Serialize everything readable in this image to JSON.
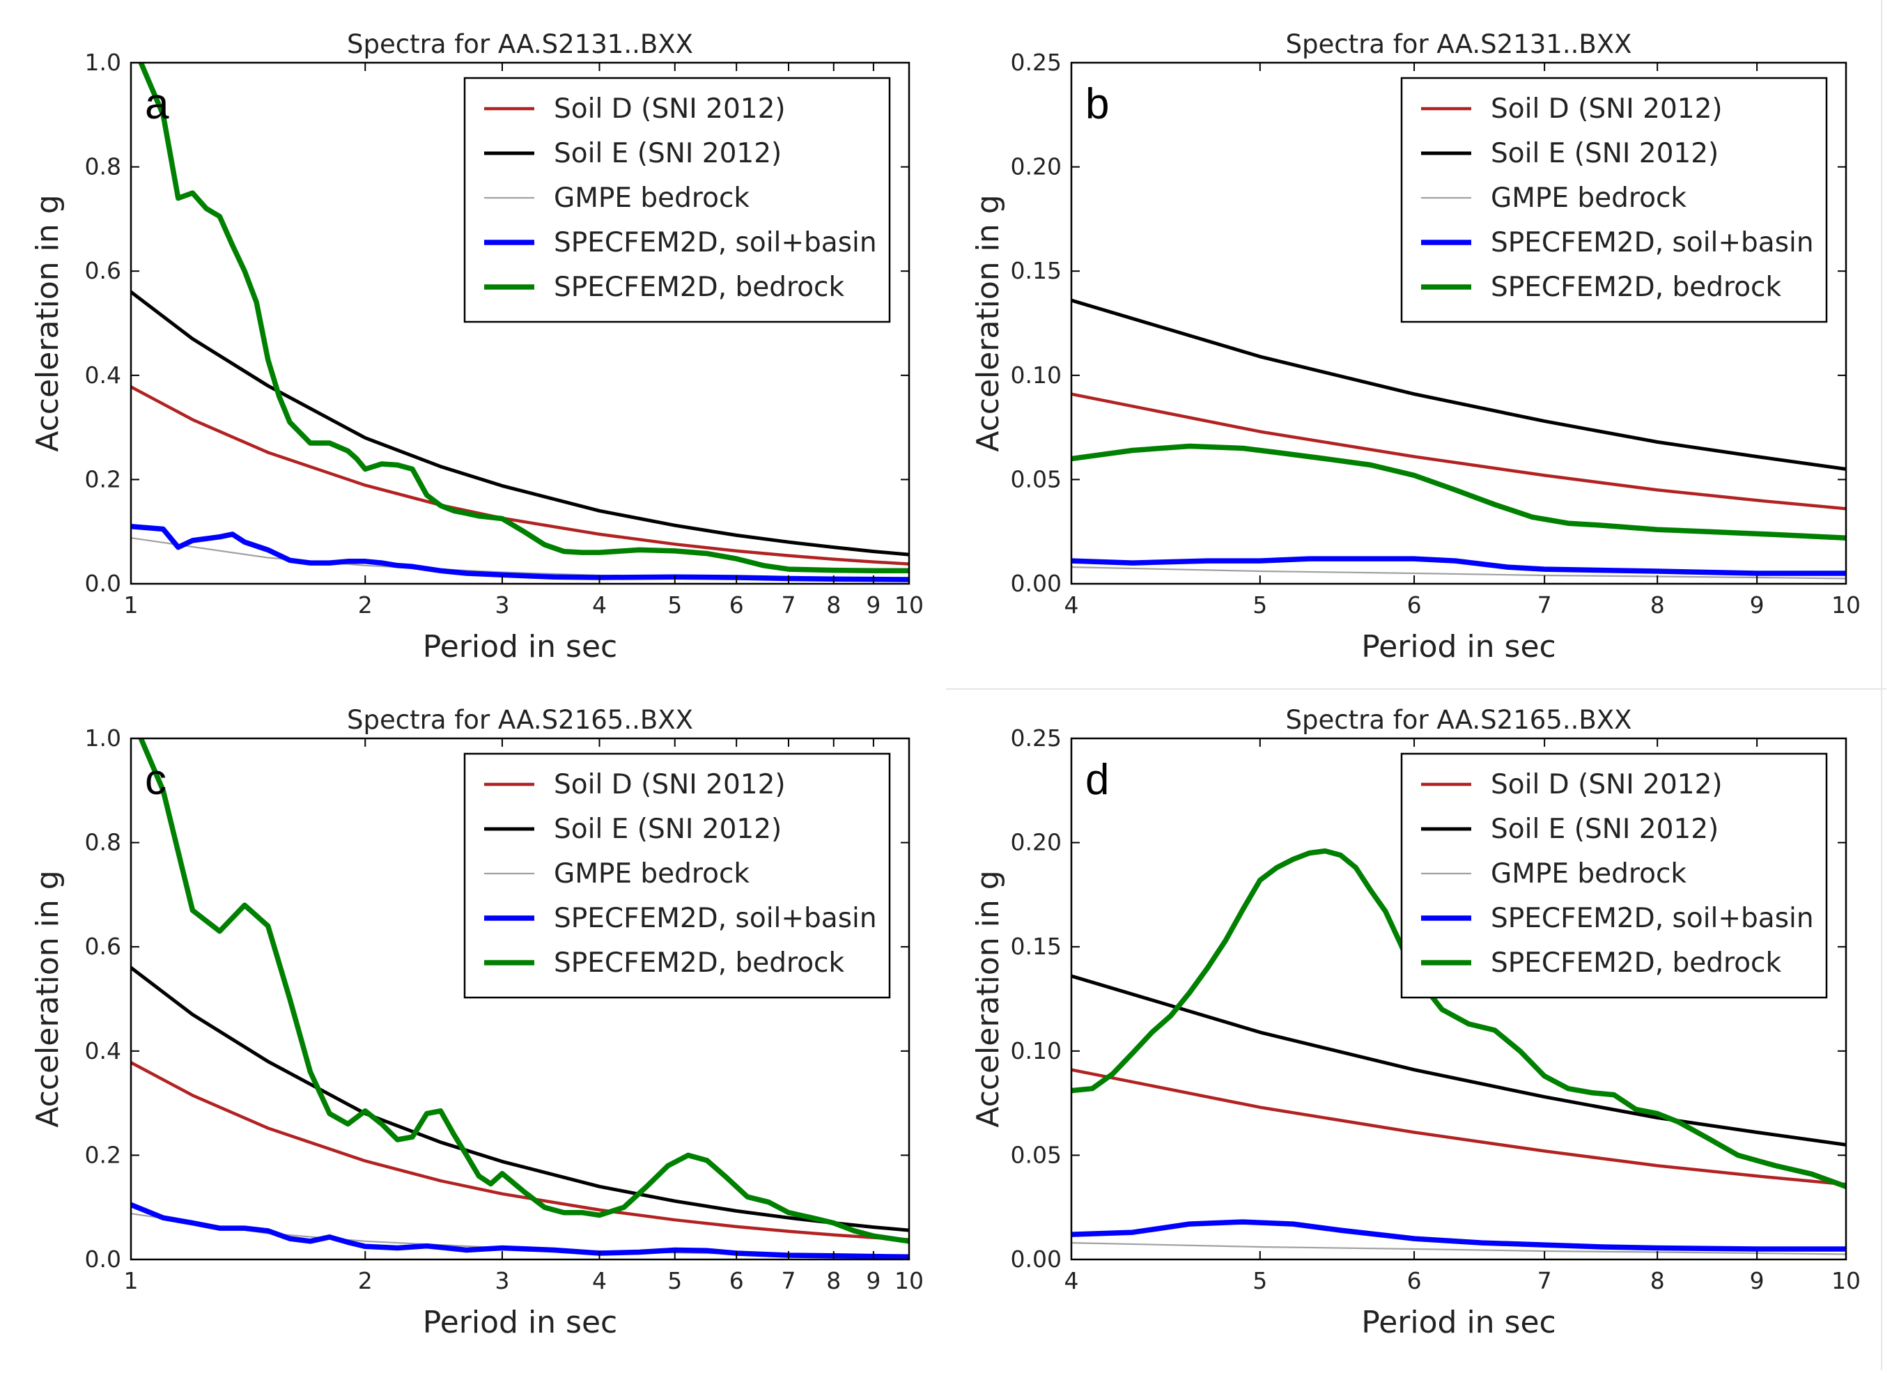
{
  "figure": {
    "description_letters": [
      "a",
      "b",
      "c",
      "d"
    ]
  },
  "colors": {
    "soil_d": "#b22222",
    "soil_e": "#000000",
    "gmpe": "#a0a0a0",
    "soil_basin": "#0000ff",
    "bedrock": "#008000"
  },
  "chart_data": [
    {
      "type": "line",
      "panel": "a",
      "title": "Spectra for AA.S2131..BXX",
      "xlabel": "Period in sec",
      "ylabel": "Acceleration in g",
      "xscale": "log",
      "xlim": [
        1,
        10
      ],
      "ylim": [
        0,
        1.0
      ],
      "xticks": [
        1,
        2,
        3,
        4,
        5,
        6,
        7,
        8,
        9,
        10
      ],
      "xtick_labels": [
        "1",
        "2",
        "3",
        "4",
        "5",
        "6",
        "7",
        "8",
        "9",
        "10"
      ],
      "yticks": [
        0,
        0.2,
        0.4,
        0.6,
        0.8,
        1.0
      ],
      "ytick_labels": [
        "0.0",
        "0.2",
        "0.4",
        "0.6",
        "0.8",
        "1.0"
      ],
      "legend": "top-right",
      "series": [
        {
          "name": "Soil D (SNI 2012)",
          "key": "soil_d",
          "x": [
            1,
            1.2,
            1.5,
            2,
            2.5,
            3,
            4,
            5,
            6,
            7,
            8,
            9,
            10
          ],
          "y": [
            0.378,
            0.315,
            0.252,
            0.189,
            0.151,
            0.126,
            0.095,
            0.076,
            0.063,
            0.054,
            0.047,
            0.042,
            0.038
          ]
        },
        {
          "name": "Soil E (SNI 2012)",
          "key": "soil_e",
          "x": [
            1,
            1.2,
            1.5,
            2,
            2.5,
            3,
            4,
            5,
            6,
            7,
            8,
            9,
            10
          ],
          "y": [
            0.56,
            0.47,
            0.38,
            0.28,
            0.225,
            0.188,
            0.14,
            0.112,
            0.093,
            0.08,
            0.07,
            0.062,
            0.056
          ]
        },
        {
          "name": "GMPE bedrock",
          "key": "gmpe",
          "x": [
            1,
            1.5,
            2,
            3,
            4,
            5,
            6,
            8,
            10
          ],
          "y": [
            0.088,
            0.05,
            0.035,
            0.022,
            0.016,
            0.013,
            0.011,
            0.009,
            0.007
          ]
        },
        {
          "name": "SPECFEM2D, soil+basin",
          "key": "soil_basin",
          "x": [
            1,
            1.1,
            1.15,
            1.2,
            1.3,
            1.35,
            1.4,
            1.5,
            1.6,
            1.7,
            1.8,
            1.9,
            2.0,
            2.1,
            2.2,
            2.3,
            2.5,
            2.7,
            3.0,
            3.5,
            4.0,
            5.0,
            6.0,
            7.0,
            8.0,
            10.0
          ],
          "y": [
            0.11,
            0.105,
            0.07,
            0.083,
            0.09,
            0.095,
            0.08,
            0.065,
            0.045,
            0.04,
            0.04,
            0.043,
            0.043,
            0.04,
            0.035,
            0.033,
            0.025,
            0.02,
            0.017,
            0.013,
            0.012,
            0.013,
            0.012,
            0.01,
            0.009,
            0.008
          ]
        },
        {
          "name": "SPECFEM2D, bedrock",
          "key": "bedrock",
          "x": [
            1.03,
            1.1,
            1.15,
            1.2,
            1.25,
            1.3,
            1.35,
            1.4,
            1.45,
            1.5,
            1.55,
            1.6,
            1.7,
            1.8,
            1.9,
            1.95,
            2.0,
            2.05,
            2.1,
            2.2,
            2.3,
            2.4,
            2.5,
            2.6,
            2.7,
            2.8,
            3.0,
            3.2,
            3.4,
            3.6,
            3.8,
            4.0,
            4.5,
            5.0,
            5.5,
            6.0,
            6.5,
            7.0,
            8.0,
            9.0,
            10.0
          ],
          "y": [
            1.0,
            0.9,
            0.74,
            0.75,
            0.72,
            0.705,
            0.65,
            0.6,
            0.54,
            0.43,
            0.36,
            0.31,
            0.27,
            0.27,
            0.255,
            0.24,
            0.22,
            0.225,
            0.23,
            0.228,
            0.22,
            0.17,
            0.15,
            0.14,
            0.135,
            0.13,
            0.125,
            0.1,
            0.075,
            0.062,
            0.06,
            0.06,
            0.065,
            0.063,
            0.058,
            0.048,
            0.035,
            0.028,
            0.026,
            0.025,
            0.025
          ]
        }
      ]
    },
    {
      "type": "line",
      "panel": "b",
      "title": "Spectra for AA.S2131..BXX",
      "xlabel": "Period in sec",
      "ylabel": "Acceleration in g",
      "xscale": "log",
      "xlim": [
        4,
        10
      ],
      "ylim": [
        0,
        0.25
      ],
      "xticks": [
        4,
        5,
        6,
        7,
        8,
        9,
        10
      ],
      "xtick_labels": [
        "4",
        "5",
        "6",
        "7",
        "8",
        "9",
        "10"
      ],
      "yticks": [
        0,
        0.05,
        0.1,
        0.15,
        0.2,
        0.25
      ],
      "ytick_labels": [
        "0.00",
        "0.05",
        "0.10",
        "0.15",
        "0.20",
        "0.25"
      ],
      "legend": "top-right",
      "series": [
        {
          "name": "Soil D (SNI 2012)",
          "key": "soil_d",
          "x": [
            4,
            5,
            6,
            7,
            8,
            9,
            10
          ],
          "y": [
            0.091,
            0.073,
            0.061,
            0.052,
            0.045,
            0.04,
            0.036
          ]
        },
        {
          "name": "Soil E (SNI 2012)",
          "key": "soil_e",
          "x": [
            4,
            5,
            6,
            7,
            8,
            9,
            10
          ],
          "y": [
            0.136,
            0.109,
            0.091,
            0.078,
            0.068,
            0.061,
            0.055
          ]
        },
        {
          "name": "GMPE bedrock",
          "key": "gmpe",
          "x": [
            4,
            5,
            6,
            7,
            8,
            9,
            10
          ],
          "y": [
            0.008,
            0.006,
            0.005,
            0.004,
            0.0035,
            0.003,
            0.0025
          ]
        },
        {
          "name": "SPECFEM2D, soil+basin",
          "key": "soil_basin",
          "x": [
            4,
            4.3,
            4.7,
            5.0,
            5.3,
            5.7,
            6.0,
            6.3,
            6.7,
            7.0,
            8.0,
            9.0,
            10.0
          ],
          "y": [
            0.011,
            0.01,
            0.011,
            0.011,
            0.012,
            0.012,
            0.012,
            0.011,
            0.008,
            0.007,
            0.006,
            0.005,
            0.005
          ]
        },
        {
          "name": "SPECFEM2D, bedrock",
          "key": "bedrock",
          "x": [
            4,
            4.3,
            4.6,
            4.9,
            5.1,
            5.4,
            5.7,
            6.0,
            6.3,
            6.6,
            6.9,
            7.2,
            7.5,
            8.0,
            8.5,
            9.0,
            9.5,
            10.0
          ],
          "y": [
            0.06,
            0.064,
            0.066,
            0.065,
            0.063,
            0.06,
            0.057,
            0.052,
            0.045,
            0.038,
            0.032,
            0.029,
            0.028,
            0.026,
            0.025,
            0.024,
            0.023,
            0.022
          ]
        }
      ]
    },
    {
      "type": "line",
      "panel": "c",
      "title": "Spectra for AA.S2165..BXX",
      "xlabel": "Period in sec",
      "ylabel": "Acceleration in g",
      "xscale": "log",
      "xlim": [
        1,
        10
      ],
      "ylim": [
        0,
        1.0
      ],
      "xticks": [
        1,
        2,
        3,
        4,
        5,
        6,
        7,
        8,
        9,
        10
      ],
      "xtick_labels": [
        "1",
        "2",
        "3",
        "4",
        "5",
        "6",
        "7",
        "8",
        "9",
        "10"
      ],
      "yticks": [
        0,
        0.2,
        0.4,
        0.6,
        0.8,
        1.0
      ],
      "ytick_labels": [
        "0.0",
        "0.2",
        "0.4",
        "0.6",
        "0.8",
        "1.0"
      ],
      "legend": "top-right",
      "series": [
        {
          "name": "Soil D (SNI 2012)",
          "key": "soil_d",
          "x": [
            1,
            1.2,
            1.5,
            2,
            2.5,
            3,
            4,
            5,
            6,
            7,
            8,
            9,
            10
          ],
          "y": [
            0.378,
            0.315,
            0.252,
            0.189,
            0.151,
            0.126,
            0.095,
            0.076,
            0.063,
            0.054,
            0.047,
            0.042,
            0.038
          ]
        },
        {
          "name": "Soil E (SNI 2012)",
          "key": "soil_e",
          "x": [
            1,
            1.2,
            1.5,
            2,
            2.5,
            3,
            4,
            5,
            6,
            7,
            8,
            9,
            10
          ],
          "y": [
            0.56,
            0.47,
            0.38,
            0.28,
            0.225,
            0.188,
            0.14,
            0.112,
            0.093,
            0.08,
            0.07,
            0.062,
            0.056
          ]
        },
        {
          "name": "GMPE bedrock",
          "key": "gmpe",
          "x": [
            1,
            1.5,
            2,
            3,
            4,
            5,
            6,
            8,
            10
          ],
          "y": [
            0.088,
            0.05,
            0.035,
            0.022,
            0.016,
            0.013,
            0.011,
            0.009,
            0.007
          ]
        },
        {
          "name": "SPECFEM2D, soil+basin",
          "key": "soil_basin",
          "x": [
            1,
            1.1,
            1.2,
            1.3,
            1.4,
            1.5,
            1.6,
            1.7,
            1.8,
            1.9,
            2.0,
            2.2,
            2.4,
            2.7,
            3.0,
            3.5,
            4.0,
            4.5,
            5.0,
            5.5,
            6.0,
            7.0,
            8.0,
            10.0
          ],
          "y": [
            0.105,
            0.08,
            0.07,
            0.06,
            0.06,
            0.055,
            0.04,
            0.035,
            0.043,
            0.033,
            0.025,
            0.022,
            0.026,
            0.018,
            0.022,
            0.018,
            0.012,
            0.014,
            0.018,
            0.017,
            0.012,
            0.008,
            0.007,
            0.005
          ]
        },
        {
          "name": "SPECFEM2D, bedrock",
          "key": "bedrock",
          "x": [
            1.03,
            1.1,
            1.2,
            1.3,
            1.4,
            1.5,
            1.6,
            1.7,
            1.8,
            1.9,
            2.0,
            2.1,
            2.2,
            2.3,
            2.4,
            2.5,
            2.6,
            2.7,
            2.8,
            2.9,
            3.0,
            3.2,
            3.4,
            3.6,
            3.8,
            4.0,
            4.3,
            4.6,
            4.9,
            5.2,
            5.5,
            5.8,
            6.2,
            6.6,
            7.0,
            7.5,
            8.0,
            8.5,
            9.0,
            10.0
          ],
          "y": [
            1.0,
            0.9,
            0.67,
            0.63,
            0.68,
            0.64,
            0.5,
            0.36,
            0.28,
            0.26,
            0.285,
            0.26,
            0.23,
            0.235,
            0.28,
            0.285,
            0.24,
            0.2,
            0.16,
            0.145,
            0.165,
            0.13,
            0.1,
            0.09,
            0.09,
            0.085,
            0.1,
            0.14,
            0.18,
            0.2,
            0.19,
            0.16,
            0.12,
            0.11,
            0.09,
            0.08,
            0.07,
            0.055,
            0.045,
            0.035
          ]
        }
      ]
    },
    {
      "type": "line",
      "panel": "d",
      "title": "Spectra for AA.S2165..BXX",
      "xlabel": "Period in sec",
      "ylabel": "Acceleration in g",
      "xscale": "log",
      "xlim": [
        4,
        10
      ],
      "ylim": [
        0,
        0.25
      ],
      "xticks": [
        4,
        5,
        6,
        7,
        8,
        9,
        10
      ],
      "xtick_labels": [
        "4",
        "5",
        "6",
        "7",
        "8",
        "9",
        "10"
      ],
      "yticks": [
        0,
        0.05,
        0.1,
        0.15,
        0.2,
        0.25
      ],
      "ytick_labels": [
        "0.00",
        "0.05",
        "0.10",
        "0.15",
        "0.20",
        "0.25"
      ],
      "legend": "top-right",
      "series": [
        {
          "name": "Soil D (SNI 2012)",
          "key": "soil_d",
          "x": [
            4,
            5,
            6,
            7,
            8,
            9,
            10
          ],
          "y": [
            0.091,
            0.073,
            0.061,
            0.052,
            0.045,
            0.04,
            0.036
          ]
        },
        {
          "name": "Soil E (SNI 2012)",
          "key": "soil_e",
          "x": [
            4,
            5,
            6,
            7,
            8,
            9,
            10
          ],
          "y": [
            0.136,
            0.109,
            0.091,
            0.078,
            0.068,
            0.061,
            0.055
          ]
        },
        {
          "name": "GMPE bedrock",
          "key": "gmpe",
          "x": [
            4,
            5,
            6,
            7,
            8,
            9,
            10
          ],
          "y": [
            0.008,
            0.006,
            0.005,
            0.004,
            0.0035,
            0.003,
            0.0025
          ]
        },
        {
          "name": "SPECFEM2D, soil+basin",
          "key": "soil_basin",
          "x": [
            4,
            4.3,
            4.6,
            4.9,
            5.2,
            5.5,
            6.0,
            6.5,
            7.0,
            7.5,
            8.0,
            9.0,
            10.0
          ],
          "y": [
            0.012,
            0.013,
            0.017,
            0.018,
            0.017,
            0.014,
            0.01,
            0.008,
            0.007,
            0.006,
            0.0055,
            0.005,
            0.005
          ]
        },
        {
          "name": "SPECFEM2D, bedrock",
          "key": "bedrock",
          "x": [
            4,
            4.1,
            4.2,
            4.3,
            4.4,
            4.5,
            4.6,
            4.7,
            4.8,
            4.9,
            5.0,
            5.1,
            5.2,
            5.3,
            5.4,
            5.5,
            5.6,
            5.7,
            5.8,
            5.9,
            6.0,
            6.2,
            6.4,
            6.6,
            6.8,
            7.0,
            7.2,
            7.4,
            7.6,
            7.8,
            8.0,
            8.2,
            8.5,
            8.8,
            9.2,
            9.6,
            10.0
          ],
          "y": [
            0.081,
            0.082,
            0.089,
            0.099,
            0.109,
            0.117,
            0.128,
            0.14,
            0.153,
            0.168,
            0.182,
            0.188,
            0.192,
            0.195,
            0.196,
            0.194,
            0.188,
            0.177,
            0.167,
            0.152,
            0.137,
            0.12,
            0.113,
            0.11,
            0.1,
            0.088,
            0.082,
            0.08,
            0.079,
            0.072,
            0.07,
            0.066,
            0.058,
            0.05,
            0.045,
            0.041,
            0.035
          ]
        }
      ]
    }
  ]
}
